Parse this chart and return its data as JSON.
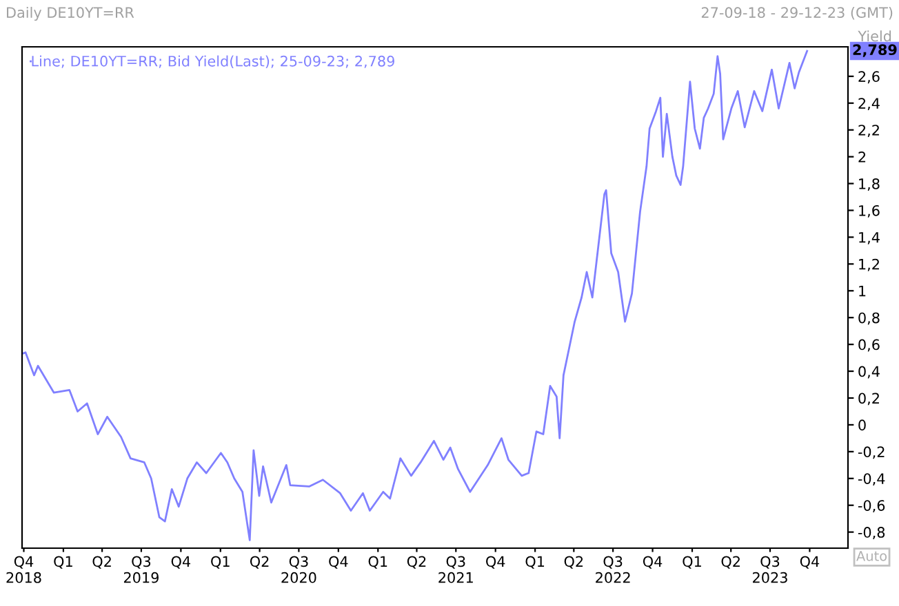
{
  "chart_data": {
    "type": "line",
    "title": "Daily DE10YT=RR",
    "subtitle": "27-09-18 - 29-12-23 (GMT)",
    "ylabel": "Yield",
    "x": [
      "2018-09-27",
      "2018-10-05",
      "2018-10-25",
      "2018-11-03",
      "2018-12-10",
      "2019-01-15",
      "2019-02-03",
      "2019-02-25",
      "2019-03-22",
      "2019-04-13",
      "2019-05-15",
      "2019-06-06",
      "2019-07-08",
      "2019-07-24",
      "2019-08-12",
      "2019-08-25",
      "2019-09-10",
      "2019-09-26",
      "2019-10-16",
      "2019-11-07",
      "2019-11-29",
      "2020-01-02",
      "2020-01-17",
      "2020-02-02",
      "2020-02-21",
      "2020-03-09",
      "2020-03-18",
      "2020-03-31",
      "2020-04-09",
      "2020-04-28",
      "2020-06-02",
      "2020-06-11",
      "2020-07-25",
      "2020-08-26",
      "2020-10-05",
      "2020-10-30",
      "2020-11-27",
      "2020-12-13",
      "2021-01-13",
      "2021-01-29",
      "2021-02-22",
      "2021-03-19",
      "2021-04-10",
      "2021-05-11",
      "2021-06-02",
      "2021-06-18",
      "2021-07-06",
      "2021-08-03",
      "2021-09-13",
      "2021-10-15",
      "2021-10-31",
      "2021-12-01",
      "2021-12-17",
      "2022-01-04",
      "2022-01-20",
      "2022-02-05",
      "2022-02-20",
      "2022-02-27",
      "2022-03-08",
      "2022-04-03",
      "2022-04-19",
      "2022-05-01",
      "2022-05-14",
      "2022-06-11",
      "2022-06-15",
      "2022-06-27",
      "2022-07-13",
      "2022-07-29",
      "2022-08-14",
      "2022-09-02",
      "2022-09-17",
      "2022-09-24",
      "2022-10-09",
      "2022-10-19",
      "2022-10-25",
      "2022-11-03",
      "2022-11-16",
      "2022-11-25",
      "2022-12-05",
      "2022-12-11",
      "2022-12-27",
      "2023-01-07",
      "2023-01-19",
      "2023-01-28",
      "2023-02-07",
      "2023-02-20",
      "2023-03-01",
      "2023-03-07",
      "2023-03-14",
      "2023-04-02",
      "2023-04-17",
      "2023-05-03",
      "2023-05-25",
      "2023-06-13",
      "2023-07-05",
      "2023-07-21",
      "2023-08-15",
      "2023-08-27",
      "2023-09-06",
      "2023-09-25"
    ],
    "series": [
      {
        "name": "Line; DE10YT=RR; Bid Yield(Last); 25-09-23; 2,789",
        "color": "#8080ff",
        "values": [
          0.53,
          0.54,
          0.37,
          0.44,
          0.24,
          0.26,
          0.1,
          0.16,
          -0.07,
          0.06,
          -0.09,
          -0.25,
          -0.28,
          -0.4,
          -0.69,
          -0.72,
          -0.48,
          -0.61,
          -0.4,
          -0.28,
          -0.36,
          -0.21,
          -0.28,
          -0.4,
          -0.5,
          -0.86,
          -0.19,
          -0.53,
          -0.31,
          -0.58,
          -0.3,
          -0.45,
          -0.46,
          -0.41,
          -0.51,
          -0.64,
          -0.51,
          -0.64,
          -0.5,
          -0.55,
          -0.25,
          -0.38,
          -0.28,
          -0.12,
          -0.26,
          -0.17,
          -0.33,
          -0.5,
          -0.3,
          -0.1,
          -0.26,
          -0.38,
          -0.36,
          -0.05,
          -0.07,
          0.29,
          0.21,
          -0.1,
          0.37,
          0.77,
          0.95,
          1.14,
          0.95,
          1.72,
          1.75,
          1.28,
          1.14,
          0.77,
          0.98,
          1.59,
          1.93,
          2.21,
          2.34,
          2.44,
          2.0,
          2.32,
          2.0,
          1.86,
          1.79,
          1.93,
          2.56,
          2.21,
          2.06,
          2.29,
          2.36,
          2.47,
          2.75,
          2.62,
          2.13,
          2.36,
          2.49,
          2.22,
          2.49,
          2.34,
          2.65,
          2.36,
          2.7,
          2.51,
          2.63,
          2.789
        ]
      }
    ],
    "xlim": [
      "2018-09-27",
      "2023-12-29"
    ],
    "xticks": [
      {
        "value": "2018-10-01",
        "label": "Q4\n2018"
      },
      {
        "value": "2019-01-01",
        "label": "Q1"
      },
      {
        "value": "2019-04-01",
        "label": "Q2"
      },
      {
        "value": "2019-07-01",
        "label": "Q3\n2019"
      },
      {
        "value": "2019-10-01",
        "label": "Q4"
      },
      {
        "value": "2020-01-01",
        "label": "Q1"
      },
      {
        "value": "2020-04-01",
        "label": "Q2"
      },
      {
        "value": "2020-07-01",
        "label": "Q3\n2020"
      },
      {
        "value": "2020-10-01",
        "label": "Q4"
      },
      {
        "value": "2021-01-01",
        "label": "Q1"
      },
      {
        "value": "2021-04-01",
        "label": "Q2"
      },
      {
        "value": "2021-07-01",
        "label": "Q3\n2021"
      },
      {
        "value": "2021-10-01",
        "label": "Q4"
      },
      {
        "value": "2022-01-01",
        "label": "Q1"
      },
      {
        "value": "2022-04-01",
        "label": "Q2"
      },
      {
        "value": "2022-07-01",
        "label": "Q3\n2022"
      },
      {
        "value": "2022-10-01",
        "label": "Q4"
      },
      {
        "value": "2023-01-01",
        "label": "Q1"
      },
      {
        "value": "2023-04-01",
        "label": "Q2"
      },
      {
        "value": "2023-07-01",
        "label": "Q3\n2023"
      },
      {
        "value": "2023-10-01",
        "label": "Q4"
      }
    ],
    "ylim": [
      -0.92,
      2.82
    ],
    "yticks": [
      {
        "value": -0.8,
        "label": "-0,8"
      },
      {
        "value": -0.6,
        "label": "-0,6"
      },
      {
        "value": -0.4,
        "label": "-0,4"
      },
      {
        "value": -0.2,
        "label": "-0,2"
      },
      0,
      {
        "value": 0.2,
        "label": "0,2"
      },
      {
        "value": 0.4,
        "label": "0,4"
      },
      {
        "value": 0.6,
        "label": "0,6"
      },
      {
        "value": 0.8,
        "label": "0,8"
      },
      1,
      {
        "value": 1.2,
        "label": "1,2"
      },
      {
        "value": 1.4,
        "label": "1,4"
      },
      {
        "value": 1.6,
        "label": "1,6"
      },
      {
        "value": 1.8,
        "label": "1,8"
      },
      2,
      {
        "value": 2.2,
        "label": "2,2"
      },
      {
        "value": 2.4,
        "label": "2,4"
      },
      {
        "value": 2.6,
        "label": "2,6"
      }
    ],
    "annotations": [
      "2,789",
      "Auto"
    ],
    "legend": "top left",
    "grid": false,
    "marker": "none",
    "line_style": "solid"
  }
}
